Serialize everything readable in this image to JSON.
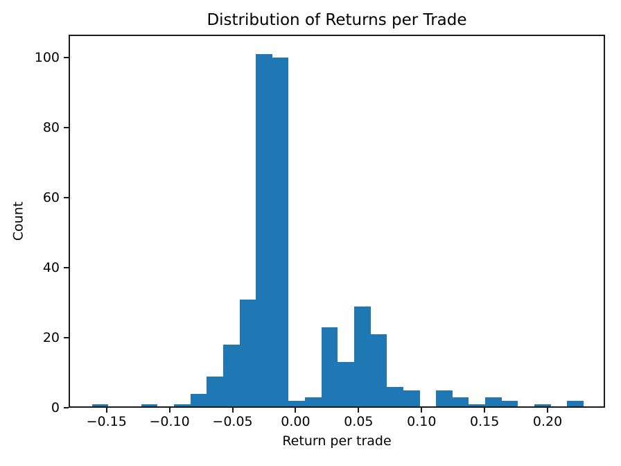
{
  "chart_data": {
    "type": "bar",
    "subtype": "histogram",
    "title": "Distribution of Returns per Trade",
    "xlabel": "Return per trade",
    "ylabel": "Count",
    "bar_color": "#1f77b4",
    "axis_color": "#1a1a1a",
    "background_color": "#ffffff",
    "grid": false,
    "bin_start": -0.1615,
    "bin_width": 0.013,
    "counts": [
      1,
      0,
      0,
      1,
      0,
      1,
      4,
      9,
      18,
      31,
      101,
      100,
      2,
      3,
      23,
      13,
      29,
      21,
      6,
      5,
      0,
      5,
      3,
      1,
      3,
      2,
      0,
      1,
      0,
      2
    ],
    "xlim": [
      -0.1801,
      0.2456
    ],
    "ylim": [
      0,
      106.6
    ],
    "x_ticks": [
      {
        "value": -0.15,
        "label": "−0.15"
      },
      {
        "value": -0.1,
        "label": "−0.10"
      },
      {
        "value": -0.05,
        "label": "−0.05"
      },
      {
        "value": 0.0,
        "label": "0.00"
      },
      {
        "value": 0.05,
        "label": "0.05"
      },
      {
        "value": 0.1,
        "label": "0.10"
      },
      {
        "value": 0.15,
        "label": "0.15"
      },
      {
        "value": 0.2,
        "label": "0.20"
      }
    ],
    "y_ticks": [
      {
        "value": 0,
        "label": "0"
      },
      {
        "value": 20,
        "label": "20"
      },
      {
        "value": 40,
        "label": "40"
      },
      {
        "value": 60,
        "label": "60"
      },
      {
        "value": 80,
        "label": "80"
      },
      {
        "value": 100,
        "label": "100"
      }
    ]
  }
}
